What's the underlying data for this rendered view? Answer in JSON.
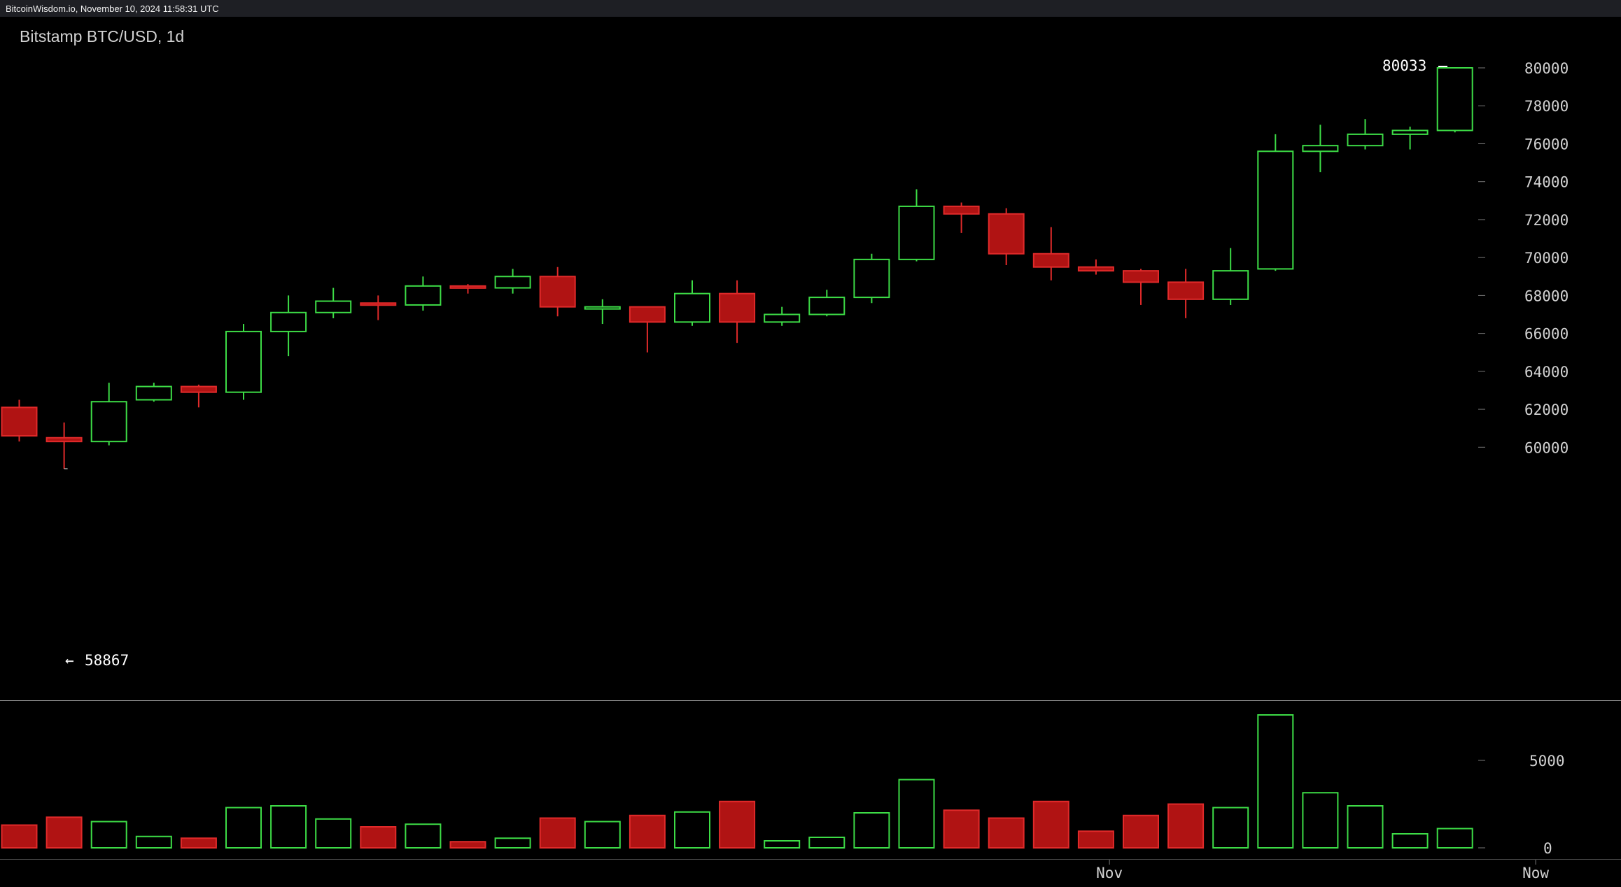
{
  "header": {
    "source_line": "BitcoinWisdom.io, November 10, 2024 11:58:31 UTC"
  },
  "chart_title": "Bitstamp BTC/USD, 1d",
  "colors": {
    "up": "#3ddc46",
    "down": "#b01313",
    "down_edge": "#e02a2a",
    "axis_text": "#d2d2d2",
    "label_text": "#ffffff",
    "divider": "#8a8a8a"
  },
  "annotations": {
    "high": "80033",
    "low": "58867",
    "low_arrow": "←"
  },
  "x_axis_labels": [
    {
      "label": "Nov",
      "index": 24.3
    },
    {
      "label": "Now",
      "index": 33.8
    }
  ],
  "chart_data": [
    {
      "type": "candlestick",
      "title": "Bitstamp BTC/USD, 1d",
      "ylim": [
        55000,
        80500
      ],
      "yticks": [
        60000,
        62000,
        64000,
        66000,
        68000,
        70000,
        72000,
        74000,
        76000,
        78000,
        80000
      ],
      "candles": [
        {
          "o": 62100,
          "h": 62500,
          "l": 60300,
          "c": 60600
        },
        {
          "o": 60500,
          "h": 61300,
          "l": 58867,
          "c": 60300
        },
        {
          "o": 60300,
          "h": 63400,
          "l": 60100,
          "c": 62400
        },
        {
          "o": 62500,
          "h": 63400,
          "l": 62400,
          "c": 63200
        },
        {
          "o": 63200,
          "h": 63300,
          "l": 62100,
          "c": 62900
        },
        {
          "o": 62900,
          "h": 66500,
          "l": 62500,
          "c": 66100
        },
        {
          "o": 66100,
          "h": 68000,
          "l": 64800,
          "c": 67100
        },
        {
          "o": 67100,
          "h": 68400,
          "l": 66800,
          "c": 67700
        },
        {
          "o": 67600,
          "h": 68000,
          "l": 66700,
          "c": 67500
        },
        {
          "o": 67500,
          "h": 69000,
          "l": 67200,
          "c": 68500
        },
        {
          "o": 68500,
          "h": 68600,
          "l": 68100,
          "c": 68400
        },
        {
          "o": 68400,
          "h": 69400,
          "l": 68100,
          "c": 69000
        },
        {
          "o": 69000,
          "h": 69500,
          "l": 66900,
          "c": 67400
        },
        {
          "o": 67400,
          "h": 67800,
          "l": 66500,
          "c": 67400
        },
        {
          "o": 67400,
          "h": 67400,
          "l": 65000,
          "c": 66600
        },
        {
          "o": 66600,
          "h": 68800,
          "l": 66400,
          "c": 68100
        },
        {
          "o": 68100,
          "h": 68800,
          "l": 65500,
          "c": 66600
        },
        {
          "o": 66600,
          "h": 67400,
          "l": 66400,
          "c": 67000
        },
        {
          "o": 67000,
          "h": 68300,
          "l": 66900,
          "c": 67900
        },
        {
          "o": 67900,
          "h": 70200,
          "l": 67600,
          "c": 69900
        },
        {
          "o": 69900,
          "h": 73600,
          "l": 69800,
          "c": 72700
        },
        {
          "o": 72700,
          "h": 72900,
          "l": 71300,
          "c": 72300
        },
        {
          "o": 72300,
          "h": 72600,
          "l": 69600,
          "c": 70200
        },
        {
          "o": 70200,
          "h": 71600,
          "l": 68800,
          "c": 69500
        },
        {
          "o": 69500,
          "h": 69900,
          "l": 69100,
          "c": 69300
        },
        {
          "o": 69300,
          "h": 69400,
          "l": 67500,
          "c": 68700
        },
        {
          "o": 68700,
          "h": 69400,
          "l": 66800,
          "c": 67800
        },
        {
          "o": 67800,
          "h": 70500,
          "l": 67500,
          "c": 69300
        },
        {
          "o": 69400,
          "h": 76500,
          "l": 69300,
          "c": 75600
        },
        {
          "o": 75600,
          "h": 77000,
          "l": 74500,
          "c": 75900
        },
        {
          "o": 75900,
          "h": 77300,
          "l": 75700,
          "c": 76500
        },
        {
          "o": 76500,
          "h": 76900,
          "l": 75700,
          "c": 76700
        },
        {
          "o": 76700,
          "h": 80033,
          "l": 76600,
          "c": 80000
        }
      ]
    },
    {
      "type": "bar",
      "title": "",
      "ylim": [
        0,
        8000
      ],
      "yticks": [
        0,
        5000
      ],
      "values": [
        1300,
        1750,
        1500,
        650,
        550,
        2300,
        2400,
        1650,
        1200,
        1350,
        350,
        550,
        1700,
        1500,
        1850,
        2050,
        2650,
        400,
        600,
        2000,
        3900,
        2150,
        1700,
        2650,
        950,
        1850,
        2500,
        2300,
        7600,
        3150,
        2400,
        800,
        1100
      ]
    }
  ]
}
